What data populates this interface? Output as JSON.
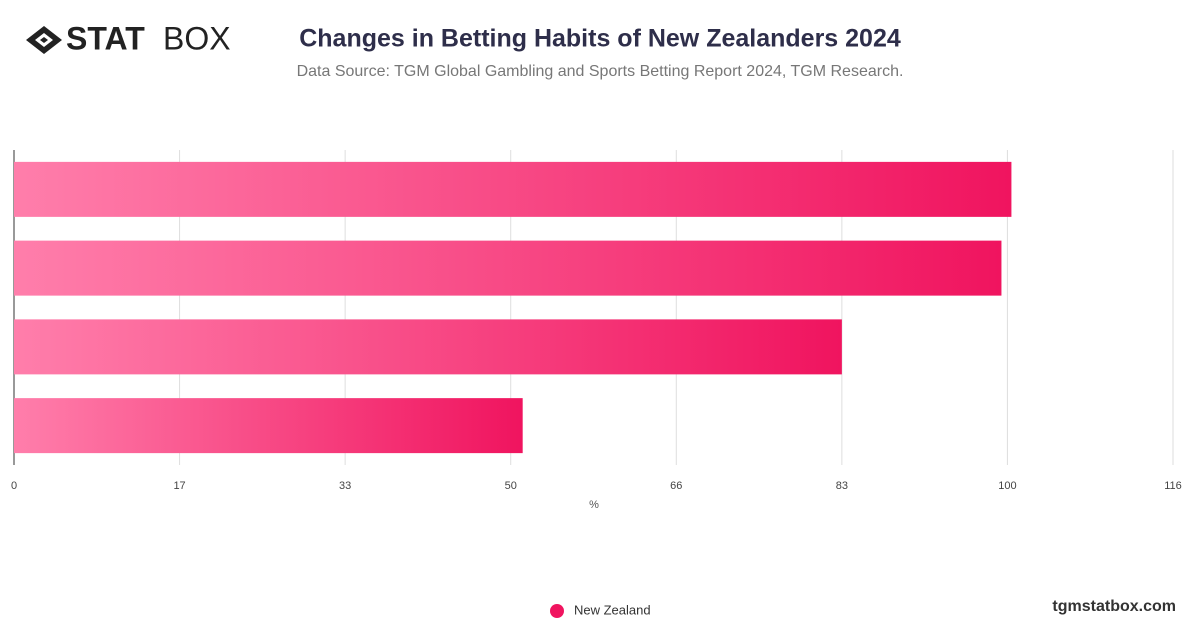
{
  "brand": {
    "bold": "STAT",
    "light": "BOX"
  },
  "footer": "tgmstatbox.com",
  "chart_data": {
    "type": "hbar",
    "title": "Changes in Betting Habits of New Zealanders 2024",
    "subtitle": "Data Source: TGM Global Gambling and Sports Betting Report 2024, TGM Research.",
    "x_label": "%",
    "categories": [
      null,
      null,
      null,
      null
    ],
    "series": [
      {
        "name": "New Zealand",
        "color": "#f0145f",
        "values": [
          100,
          99,
          83,
          51
        ]
      }
    ],
    "xlim": [
      0,
      116.2
    ],
    "xticks": [
      0,
      {
        "value": 16.6,
        "label": "17"
      },
      {
        "value": 33.2,
        "label": "33"
      },
      {
        "value": 49.8,
        "label": "50"
      },
      {
        "value": 66.4,
        "label": "66"
      },
      83,
      {
        "value": 99.6,
        "label": "100"
      },
      {
        "value": 116.2,
        "label": "116"
      }
    ],
    "grid": true
  }
}
